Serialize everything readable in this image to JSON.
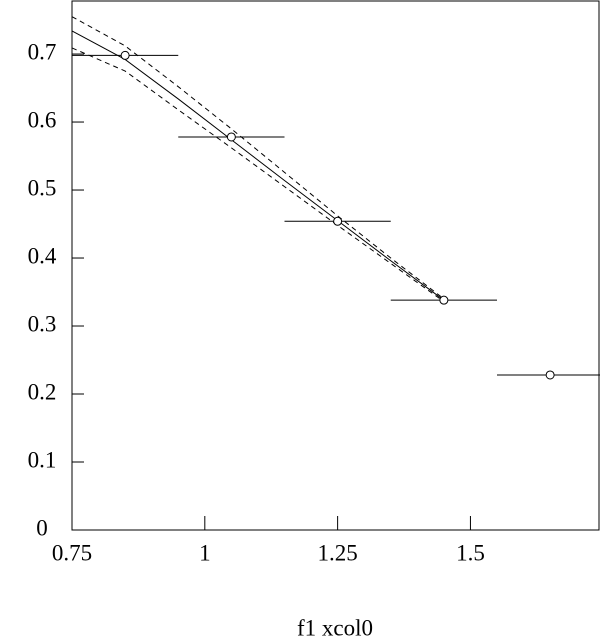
{
  "chart_data": {
    "type": "scatter",
    "xlabel": "f1 xcol0",
    "xlim": [
      0.75,
      1.742
    ],
    "ylim": [
      0,
      0.778
    ],
    "xticks": [
      {
        "value": 0.75,
        "label": "0.75"
      },
      1,
      {
        "value": 1.25,
        "label": "1.25"
      },
      1.5
    ],
    "yticks": [
      0,
      0.1,
      0.2,
      0.3,
      0.4,
      0.5,
      0.6,
      0.7
    ],
    "series": [
      {
        "type": "errorbar",
        "color": "#000000",
        "x": [
          0.85,
          1.05,
          1.25,
          1.45,
          1.65
        ],
        "values": [
          0.698,
          0.578,
          0.454,
          0.338,
          0.228
        ],
        "xerr": [
          0.1,
          0.1,
          0.1,
          0.1,
          0.1
        ]
      },
      {
        "type": "line",
        "dashed": false,
        "color": "#000000",
        "x": [
          0.75,
          0.85,
          0.95,
          1.05,
          1.15,
          1.25,
          1.35,
          1.45
        ],
        "values": [
          0.734,
          0.692,
          0.634,
          0.574,
          0.514,
          0.455,
          0.396,
          0.338
        ]
      },
      {
        "type": "line",
        "dashed": true,
        "color": "#000000",
        "x": [
          0.75,
          0.85,
          0.95,
          1.05,
          1.15,
          1.25,
          1.35,
          1.45
        ],
        "values": [
          0.755,
          0.712,
          0.652,
          0.59,
          0.526,
          0.462,
          0.4,
          0.34
        ]
      },
      {
        "type": "line",
        "dashed": true,
        "color": "#000000",
        "x": [
          0.75,
          0.85,
          0.95,
          1.05,
          1.15,
          1.25,
          1.35,
          1.45
        ],
        "values": [
          0.709,
          0.675,
          0.618,
          0.562,
          0.505,
          0.448,
          0.392,
          0.336
        ]
      }
    ]
  }
}
